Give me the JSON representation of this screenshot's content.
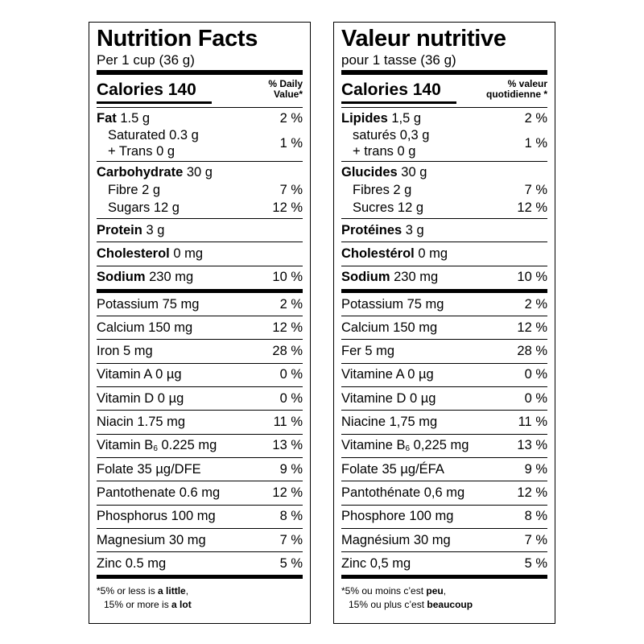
{
  "english": {
    "title": "Nutrition Facts",
    "serving": "Per 1 cup (36 g)",
    "calories_label": "Calories",
    "calories_value": "140",
    "dv_header_line1": "% Daily",
    "dv_header_line2": "Value*",
    "fat": {
      "name": "Fat",
      "amount": "1.5 g",
      "dv": "2 %"
    },
    "saturated": {
      "label": "Saturated 0.3 g"
    },
    "trans": {
      "label": "+ Trans 0 g"
    },
    "sat_trans_dv": "1 %",
    "carbohydrate": {
      "name": "Carbohydrate",
      "amount": "30 g"
    },
    "fibre": {
      "label": "Fibre 2 g",
      "dv": "7 %"
    },
    "sugars": {
      "label": "Sugars 12 g",
      "dv": "12 %"
    },
    "protein": {
      "name": "Protein",
      "amount": "3 g"
    },
    "cholesterol": {
      "name": "Cholesterol",
      "amount": "0 mg"
    },
    "sodium": {
      "name": "Sodium",
      "amount": "230 mg",
      "dv": "10 %"
    },
    "micros": [
      {
        "label": "Potassium 75 mg",
        "dv": "2 %"
      },
      {
        "label": "Calcium 150 mg",
        "dv": "12 %"
      },
      {
        "label": "Iron 5 mg",
        "dv": "28 %"
      },
      {
        "label": "Vitamin A 0 µg",
        "dv": "0 %"
      },
      {
        "label": "Vitamin D 0 µg",
        "dv": "0 %"
      },
      {
        "label": "Niacin 1.75 mg",
        "dv": "11 %"
      },
      {
        "label_pre": "Vitamin B",
        "label_sub": "6",
        "label_post": " 0.225 mg",
        "dv": "13 %"
      },
      {
        "label": "Folate 35 µg/DFE",
        "dv": "9 %"
      },
      {
        "label": "Pantothenate 0.6 mg",
        "dv": "12 %"
      },
      {
        "label": "Phosphorus 100 mg",
        "dv": "8 %"
      },
      {
        "label": "Magnesium 30 mg",
        "dv": "7 %"
      },
      {
        "label": "Zinc 0.5 mg",
        "dv": "5 %"
      }
    ],
    "footnote": {
      "line1_pre": "*5% or less is ",
      "line1_bold": "a little",
      "line1_post": ",",
      "line2_pre": "15% or more is ",
      "line2_bold": "a lot"
    }
  },
  "french": {
    "title": "Valeur nutritive",
    "serving": "pour 1 tasse (36 g)",
    "calories_label": "Calories",
    "calories_value": "140",
    "dv_header_line1": "% valeur",
    "dv_header_line2": "quotidienne *",
    "fat": {
      "name": "Lipides",
      "amount": "1,5 g",
      "dv": "2 %"
    },
    "saturated": {
      "label": "saturés 0,3 g"
    },
    "trans": {
      "label": "+ trans 0 g"
    },
    "sat_trans_dv": "1 %",
    "carbohydrate": {
      "name": "Glucides",
      "amount": "30 g"
    },
    "fibre": {
      "label": "Fibres 2 g",
      "dv": "7 %"
    },
    "sugars": {
      "label": "Sucres 12 g",
      "dv": "12 %"
    },
    "protein": {
      "name": "Protéines",
      "amount": "3 g"
    },
    "cholesterol": {
      "name": "Cholestérol",
      "amount": "0 mg"
    },
    "sodium": {
      "name": "Sodium",
      "amount": "230 mg",
      "dv": "10 %"
    },
    "micros": [
      {
        "label": "Potassium 75 mg",
        "dv": "2 %"
      },
      {
        "label": "Calcium 150 mg",
        "dv": "12 %"
      },
      {
        "label": "Fer 5 mg",
        "dv": "28 %"
      },
      {
        "label": "Vitamine A 0 µg",
        "dv": "0 %"
      },
      {
        "label": "Vitamine D 0 µg",
        "dv": "0 %"
      },
      {
        "label": "Niacine 1,75 mg",
        "dv": "11 %"
      },
      {
        "label_pre": "Vitamine B",
        "label_sub": "6",
        "label_post": " 0,225 mg",
        "dv": "13 %"
      },
      {
        "label": "Folate 35 µg/ÉFA",
        "dv": "9 %"
      },
      {
        "label": "Pantothénate 0,6 mg",
        "dv": "12 %"
      },
      {
        "label": "Phosphore 100 mg",
        "dv": "8 %"
      },
      {
        "label": "Magnésium 30 mg",
        "dv": "7 %"
      },
      {
        "label": "Zinc 0,5 mg",
        "dv": "5 %"
      }
    ],
    "footnote": {
      "line1_pre": "*5% ou moins c’est ",
      "line1_bold": "peu",
      "line1_post": ",",
      "line2_pre": "15% ou plus c’est ",
      "line2_bold": "beaucoup"
    }
  }
}
